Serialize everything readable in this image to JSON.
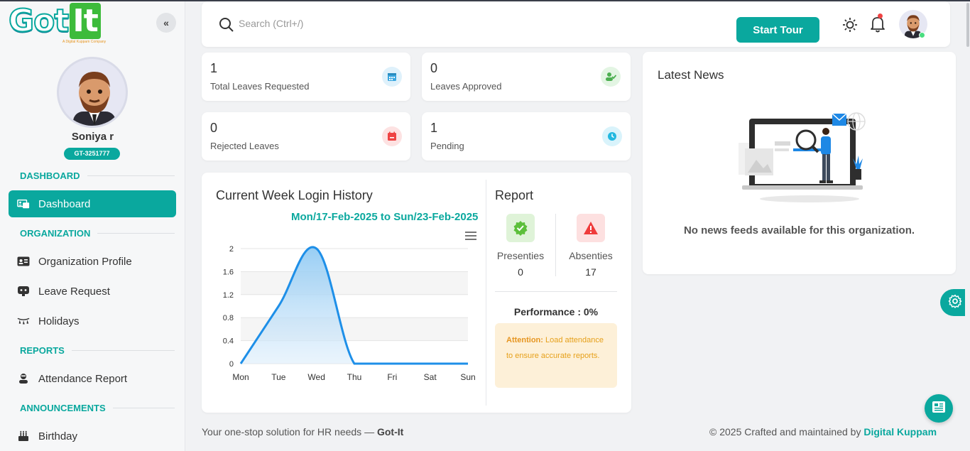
{
  "brand": {
    "logo_main": "Got",
    "logo_it": "It",
    "logo_tagline": "A Digital Kuppam Company"
  },
  "profile": {
    "name": "Soniya r",
    "employee_id": "GT-3251777"
  },
  "sidebar": {
    "sections": [
      {
        "title": "DASHBOARD",
        "items": [
          {
            "label": "Dashboard",
            "icon": "dashboard-icon",
            "active": true
          }
        ]
      },
      {
        "title": "ORGANIZATION",
        "items": [
          {
            "label": "Organization Profile",
            "icon": "id-card-icon"
          },
          {
            "label": "Leave Request",
            "icon": "leave-icon"
          },
          {
            "label": "Holidays",
            "icon": "holiday-icon"
          }
        ]
      },
      {
        "title": "REPORTS",
        "items": [
          {
            "label": "Attendance Report",
            "icon": "person-report-icon"
          }
        ]
      },
      {
        "title": "ANNOUNCEMENTS",
        "items": [
          {
            "label": "Birthday",
            "icon": "cake-icon"
          }
        ]
      }
    ]
  },
  "header": {
    "search_placeholder": "Search (Ctrl+/)",
    "tour_label": "Start Tour"
  },
  "stats": [
    {
      "value": "1",
      "label": "Total Leaves Requested",
      "icon": "calendar-icon",
      "color": "#3aa7e0"
    },
    {
      "value": "0",
      "label": "Leaves Approved",
      "icon": "user-check-icon",
      "color": "#4caf50"
    },
    {
      "value": "0",
      "label": "Rejected Leaves",
      "icon": "calendar-x-icon",
      "color": "#ef4444"
    },
    {
      "value": "1",
      "label": "Pending",
      "icon": "clock-icon",
      "color": "#22b8e0"
    }
  ],
  "login_history": {
    "title": "Current Week Login History",
    "range": "Mon/17-Feb-2025 to Sun/23-Feb-2025"
  },
  "chart_data": {
    "type": "area",
    "categories": [
      "Mon",
      "Tue",
      "Wed",
      "Thu",
      "Fri",
      "Sat",
      "Sun"
    ],
    "values": [
      0,
      1,
      2,
      0,
      0,
      0,
      0
    ],
    "yticks": [
      "0",
      "0.4",
      "0.8",
      "1.2",
      "1.6",
      "2"
    ],
    "ylim": [
      0,
      2
    ],
    "grid": true,
    "color": "#1e8fe8"
  },
  "report": {
    "title": "Report",
    "presenties_label": "Presenties",
    "presenties_value": "0",
    "absenties_label": "Absenties",
    "absenties_value": "17",
    "performance": "Performance : 0%",
    "attention_title": "Attention:",
    "attention_text": " Load attendance to ensure accurate reports."
  },
  "news": {
    "title": "Latest News",
    "empty_text": "No news feeds available for this organization."
  },
  "footer": {
    "left_text": "Your one-stop solution for HR needs — ",
    "left_brand": "Got-It",
    "right_text": "© 2025 Crafted and maintained by ",
    "right_brand": "Digital Kuppam"
  },
  "colors": {
    "accent": "#0aa89e",
    "warning_bg": "#fdf0d8",
    "warning_text": "#e6a01a"
  }
}
